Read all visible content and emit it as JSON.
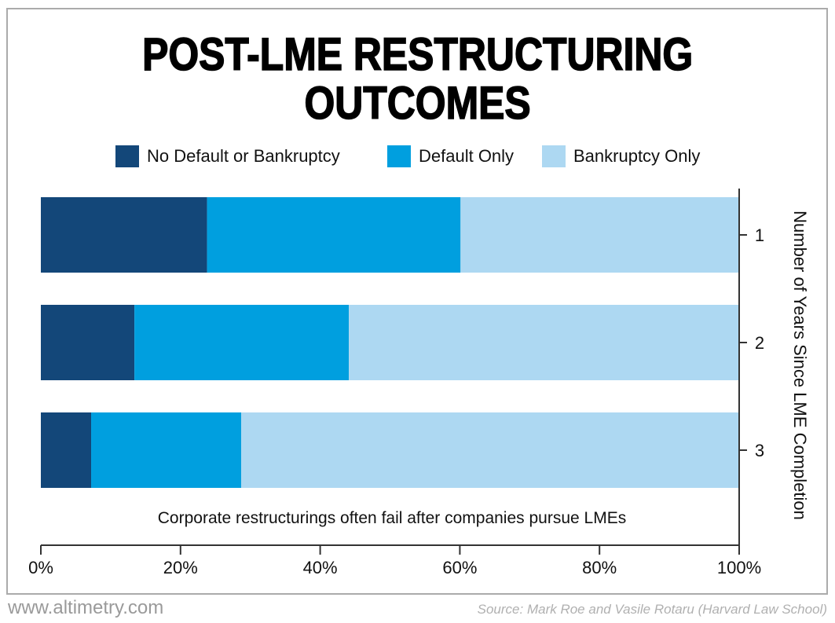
{
  "chart_data": {
    "type": "bar",
    "orientation": "horizontal",
    "stacked": true,
    "title": "POST-LME RESTRUCTURING OUTCOMES",
    "title_lines": [
      "POST-LME RESTRUCTURING",
      "OUTCOMES"
    ],
    "categories": [
      "1",
      "2",
      "3"
    ],
    "series": [
      {
        "name": "No Default or Bankruptcy",
        "color": "#134779",
        "values": [
          23.8,
          13.4,
          7.2
        ]
      },
      {
        "name": "Default Only",
        "color": "#009fdf",
        "values": [
          36.3,
          30.7,
          21.5
        ]
      },
      {
        "name": "Bankruptcy Only",
        "color": "#add8f2",
        "values": [
          39.9,
          55.9,
          71.3
        ]
      }
    ],
    "xlabel": "",
    "ylabel": "Number of Years Since LME Completion",
    "xlim": [
      0,
      100
    ],
    "xticks": [
      0,
      20,
      40,
      60,
      80,
      100
    ],
    "xtick_labels": [
      "0%",
      "20%",
      "40%",
      "60%",
      "80%",
      "100%"
    ],
    "ytick_labels": [
      "1",
      "2",
      "3"
    ],
    "yaxis_side": "right",
    "legend_position": "top",
    "grid": false,
    "annotation": "Corporate restructurings often fail after companies pursue LMEs"
  },
  "footer": {
    "website": "www.altimetry.com",
    "source": "Source: Mark Roe and Vasile Rotaru (Harvard Law School)"
  }
}
